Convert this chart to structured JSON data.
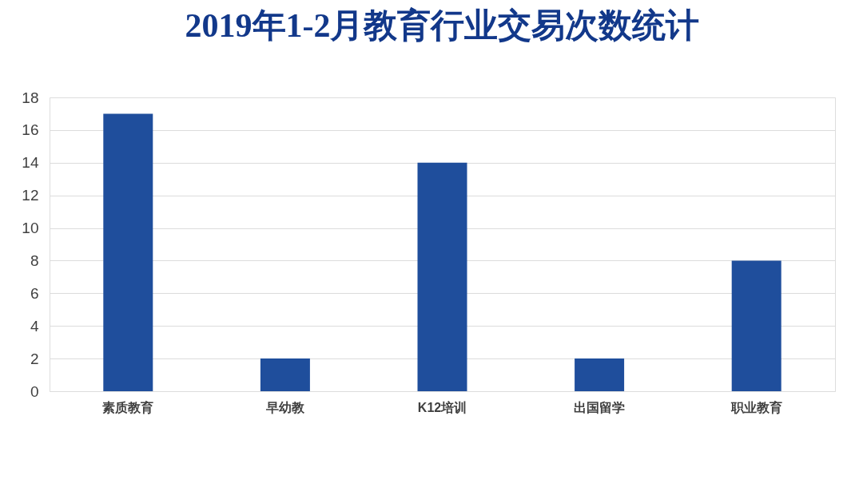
{
  "chart_data": {
    "type": "bar",
    "title": "2019年1-2月教育行业交易次数统计",
    "categories": [
      "素质教育",
      "早幼教",
      "K12培训",
      "出国留学",
      "职业教育"
    ],
    "values": [
      17,
      2,
      14,
      2,
      8
    ],
    "color": "#1f4e9c",
    "ylim": [
      0,
      18
    ],
    "yticks": [
      0,
      2,
      4,
      6,
      8,
      10,
      12,
      14,
      16,
      18
    ],
    "grid": "y"
  }
}
